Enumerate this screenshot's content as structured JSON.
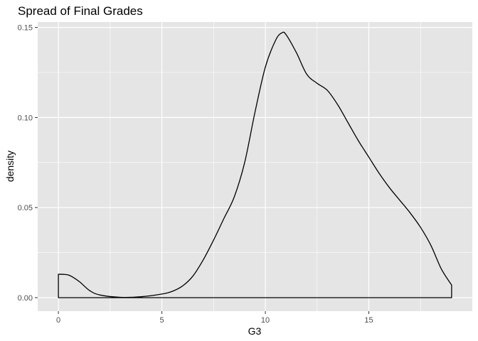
{
  "chart_data": {
    "type": "area",
    "title": "Spread of Final Grades",
    "xlabel": "G3",
    "ylabel": "density",
    "xlim": [
      -1,
      20
    ],
    "ylim": [
      -0.0075,
      0.153
    ],
    "x_ticks": [
      0,
      5,
      10,
      15
    ],
    "x_tick_labels": [
      "0",
      "5",
      "10",
      "15"
    ],
    "y_ticks": [
      0,
      0.05,
      0.1,
      0.15
    ],
    "y_tick_labels": [
      "0.00",
      "0.05",
      "0.10",
      "0.15"
    ],
    "grid": true,
    "legend": "none",
    "colors": {
      "panel": "#e5e5e5",
      "grid": "#ffffff",
      "line": "#000000",
      "fill": "none"
    },
    "series": [
      {
        "x": [
          0,
          0.5,
          1.0,
          1.5,
          2.0,
          3.0,
          4.0,
          5.0,
          5.5,
          6.0,
          6.5,
          7.0,
          7.5,
          8.0,
          8.5,
          9.0,
          9.5,
          10.0,
          10.5,
          10.8,
          11.0,
          11.5,
          12.0,
          12.5,
          13.0,
          13.5,
          14.0,
          14.5,
          15.0,
          15.5,
          16.0,
          16.5,
          17.0,
          17.5,
          18.0,
          18.5,
          19.0
        ],
        "y": [
          0.013,
          0.0125,
          0.009,
          0.004,
          0.0015,
          0.0002,
          0.0005,
          0.002,
          0.0035,
          0.0065,
          0.012,
          0.021,
          0.032,
          0.044,
          0.056,
          0.075,
          0.103,
          0.128,
          0.143,
          0.147,
          0.146,
          0.136,
          0.124,
          0.119,
          0.115,
          0.107,
          0.097,
          0.087,
          0.078,
          0.069,
          0.061,
          0.054,
          0.047,
          0.039,
          0.029,
          0.016,
          0.007
        ]
      }
    ]
  }
}
